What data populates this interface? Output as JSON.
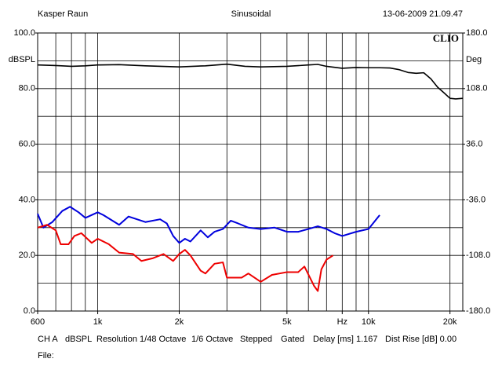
{
  "header": {
    "left": "Kasper Raun",
    "center": "Sinusoidal",
    "right": "13-06-2009 21.09.47"
  },
  "chart_data": {
    "type": "line",
    "logo": "CLIO",
    "ylabel": "dBSPL",
    "y2label": "Deg",
    "xscale": "log",
    "xlim": [
      600,
      22300
    ],
    "xticks": [
      600,
      {
        "value": 1000,
        "label": "1k"
      },
      {
        "value": 2000,
        "label": "2k"
      },
      {
        "value": 5000,
        "label": "5k"
      },
      {
        "value": 8000,
        "label": "Hz"
      },
      {
        "value": 10000,
        "label": "10k"
      },
      {
        "value": 20000,
        "label": "20k"
      }
    ],
    "xgrid": [
      600,
      700,
      800,
      900,
      1000,
      2000,
      3000,
      4000,
      5000,
      6000,
      7000,
      8000,
      9000,
      10000,
      20000
    ],
    "ylim": [
      0,
      100
    ],
    "yticks": [
      {
        "value": 0,
        "label": "0.0"
      },
      {
        "value": 20,
        "label": "20.0"
      },
      {
        "value": 40,
        "label": "40.0"
      },
      {
        "value": 60,
        "label": "60.0"
      },
      {
        "value": 80,
        "label": "80.0"
      },
      {
        "value": 100,
        "label": "100.0"
      }
    ],
    "ygrid": [
      10,
      20,
      30,
      40,
      50,
      60,
      70,
      80,
      90
    ],
    "y2lim": [
      -180,
      180
    ],
    "y2ticks": [
      {
        "value": -180,
        "label": "-180.0"
      },
      {
        "value": -108,
        "label": "-108.0"
      },
      {
        "value": -36,
        "label": "-36.0"
      },
      {
        "value": 36,
        "label": "36.0"
      },
      {
        "value": 108,
        "label": "108.0"
      },
      {
        "value": 180,
        "label": "180.0"
      }
    ],
    "series": [
      {
        "color": "#000000",
        "x": [
          600,
          700,
          800,
          900,
          1000,
          1200,
          1500,
          2000,
          2500,
          3000,
          3500,
          4000,
          5000,
          6000,
          6500,
          7000,
          8000,
          9000,
          10000,
          11000,
          12000,
          13000,
          14000,
          15000,
          16000,
          17000,
          18000,
          19000,
          20000,
          21000,
          22300
        ],
        "values": [
          88.5,
          88.3,
          88.0,
          88.2,
          88.5,
          88.6,
          88.2,
          87.8,
          88.2,
          88.8,
          88.0,
          87.8,
          88.0,
          88.5,
          88.7,
          88.0,
          87.3,
          87.6,
          87.5,
          87.5,
          87.4,
          86.8,
          85.8,
          85.5,
          85.7,
          83.5,
          80.5,
          78.5,
          76.5,
          76.3,
          76.5
        ]
      },
      {
        "color": "#0000dd",
        "x": [
          600,
          630,
          680,
          740,
          790,
          850,
          900,
          1000,
          1050,
          1200,
          1300,
          1500,
          1700,
          1800,
          1900,
          2000,
          2100,
          2200,
          2400,
          2550,
          2700,
          2900,
          3100,
          3300,
          3600,
          4000,
          4500,
          5000,
          5500,
          6000,
          6500,
          7000,
          7500,
          8000,
          9000,
          10000,
          11000
        ],
        "values": [
          35,
          30,
          32,
          36,
          37.5,
          35.5,
          33.5,
          35.5,
          34.5,
          31,
          34,
          32,
          33,
          31.5,
          27,
          24.5,
          26,
          25,
          29,
          26.5,
          28.5,
          29.5,
          32.5,
          31.5,
          30,
          29.5,
          30,
          28.5,
          28.5,
          29.5,
          30.5,
          29.5,
          28,
          27,
          28.5,
          29.5,
          34.5
        ]
      },
      {
        "color": "#ee0000",
        "x": [
          600,
          650,
          700,
          730,
          780,
          820,
          870,
          950,
          1000,
          1100,
          1200,
          1350,
          1450,
          1600,
          1750,
          1900,
          2000,
          2100,
          2200,
          2400,
          2500,
          2700,
          2900,
          3000,
          3400,
          3600,
          4000,
          4400,
          5000,
          5500,
          5800,
          6300,
          6500,
          6700,
          7000,
          7400
        ],
        "values": [
          30,
          31,
          29,
          24,
          24,
          27,
          28,
          24.5,
          26,
          24,
          21,
          20.5,
          18,
          19,
          20.5,
          18,
          20.5,
          22,
          20,
          14.5,
          13.5,
          17,
          17.5,
          12,
          12,
          13.5,
          10.5,
          13,
          14,
          14,
          16,
          9,
          7.2,
          15,
          18.5,
          20
        ]
      }
    ]
  },
  "footer": {
    "items": [
      "CH A",
      "dBSPL",
      "Resolution 1/48 Octave",
      "1/6 Octave",
      "Stepped",
      "Gated",
      "Delay [ms] 1.167",
      "Dist Rise [dB] 0.00"
    ],
    "file": "File:"
  }
}
